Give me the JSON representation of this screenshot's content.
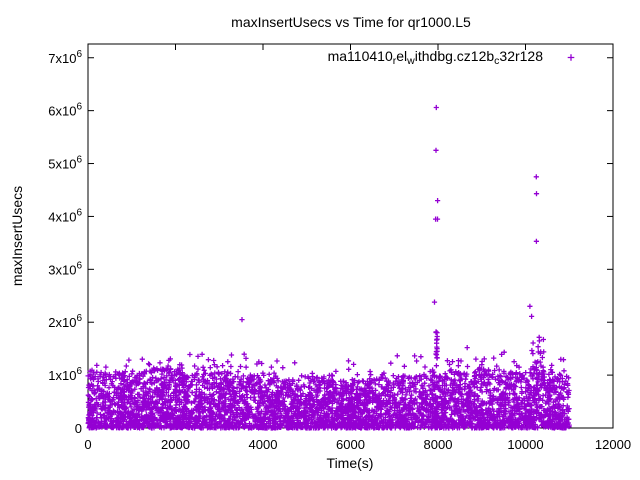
{
  "window": {
    "background": "#ffffff"
  },
  "chart_data": {
    "type": "scatter",
    "title": "maxInsertUsecs vs Time for qr1000.L5",
    "xlabel": "Time(s)",
    "ylabel": "maxInsertUsecs",
    "xlim": [
      0,
      12000
    ],
    "ylim": [
      0,
      7260000
    ],
    "grid": "off",
    "legend_position": "top-right-inside",
    "series_name_plain": "ma110410_rel_withdbg.cz12b_c32r128",
    "legend_segments": [
      {
        "text": "ma110410"
      },
      {
        "text": "r",
        "sub": true
      },
      {
        "text": "el"
      },
      {
        "text": "w",
        "sub": true
      },
      {
        "text": "ithdbg.cz12b"
      },
      {
        "text": "c",
        "sub": true
      },
      {
        "text": "32r128"
      }
    ],
    "marker_style": "plus",
    "color": "#9400D3",
    "xticks": [
      {
        "v": 0,
        "label": "0"
      },
      {
        "v": 2000,
        "label": "2000"
      },
      {
        "v": 4000,
        "label": "4000"
      },
      {
        "v": 6000,
        "label": "6000"
      },
      {
        "v": 8000,
        "label": "8000"
      },
      {
        "v": 10000,
        "label": "10000"
      },
      {
        "v": 12000,
        "label": "12000"
      }
    ],
    "yticks": [
      {
        "v": 0,
        "label": "0"
      },
      {
        "v": 1000000,
        "label": "1x10",
        "sup": "6"
      },
      {
        "v": 2000000,
        "label": "2x10",
        "sup": "6"
      },
      {
        "v": 3000000,
        "label": "3x10",
        "sup": "6"
      },
      {
        "v": 4000000,
        "label": "4x10",
        "sup": "6"
      },
      {
        "v": 5000000,
        "label": "5x10",
        "sup": "6"
      },
      {
        "v": 6000000,
        "label": "6x10",
        "sup": "6"
      },
      {
        "v": 7000000,
        "label": "7x10",
        "sup": "6"
      }
    ],
    "outliers": [
      [
        3520,
        2050000
      ],
      [
        7920,
        2380000
      ],
      [
        7945,
        3950000
      ],
      [
        7988,
        3950000
      ],
      [
        7990,
        4300000
      ],
      [
        7955,
        5250000
      ],
      [
        7960,
        6060000
      ],
      [
        10100,
        2300000
      ],
      [
        10140,
        2110000
      ],
      [
        10250,
        3530000
      ],
      [
        10252,
        4430000
      ],
      [
        10248,
        4750000
      ]
    ],
    "band": {
      "description": "dense noise band of samples from t=0 to t=11000, values mostly 0 to ~1.1e6",
      "seed": 7,
      "n": 4500,
      "t_max": 11000,
      "base": 1000000,
      "amp1": 90000,
      "f1": 0.00085,
      "amp2": 45000,
      "f2": 0.0037,
      "exp": 1.55
    },
    "tail": {
      "description": "sparse points above band up to ~1.45e6",
      "n": 150,
      "extra": 400000,
      "exp": 2.0
    },
    "clusters": [
      {
        "t": 7966,
        "t_spread": 16,
        "n": 15,
        "v_min": 1280000,
        "v_max": 1830000,
        "v_exp": 1.0
      },
      {
        "t": 10260,
        "t_spread": 160,
        "n": 24,
        "v_min": 1020000,
        "v_max": 1780000,
        "v_exp": 1.7
      }
    ]
  }
}
